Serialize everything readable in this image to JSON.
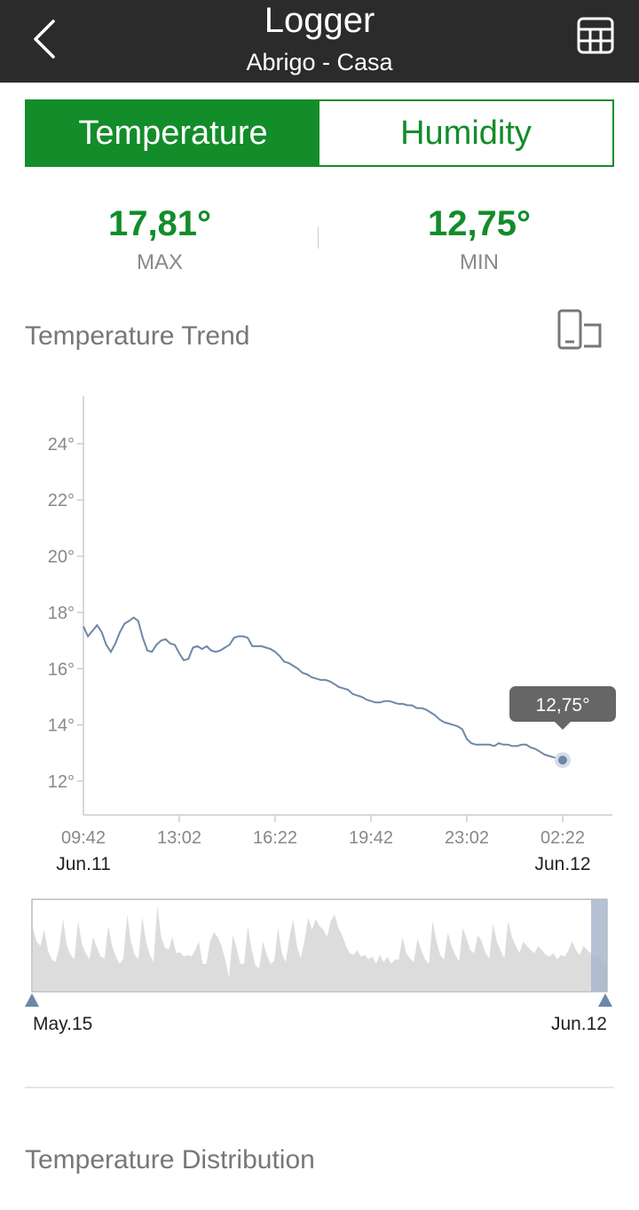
{
  "header": {
    "title": "Logger",
    "subtitle": "Abrigo - Casa"
  },
  "tabs": [
    {
      "label": "Temperature",
      "active": true
    },
    {
      "label": "Humidity",
      "active": false
    }
  ],
  "stats": {
    "max": {
      "value": "17,81°",
      "label": "MAX"
    },
    "min": {
      "value": "12,75°",
      "label": "MIN"
    }
  },
  "colors": {
    "accent": "#138c2a",
    "header_bg": "#2b2b2b",
    "line": "#6e87a8",
    "overview_fill": "#dcdcdc",
    "overview_handle": "#6e87a8"
  },
  "trend": {
    "title": "Temperature Trend",
    "rotate_icon": "rotate-screen-icon",
    "tooltip": "12,75°",
    "date_start": "Jun.11",
    "date_end": "Jun.12"
  },
  "chart_data": {
    "type": "line",
    "title": "Temperature Trend",
    "xlabel": "",
    "ylabel": "",
    "ylim": [
      10.8,
      25.7
    ],
    "yticks": [
      12,
      14,
      16,
      18,
      20,
      22,
      24
    ],
    "ytick_labels": [
      "12°",
      "14°",
      "16°",
      "18°",
      "20°",
      "22°",
      "24°"
    ],
    "xticks": [
      "09:42",
      "13:02",
      "16:22",
      "19:42",
      "23:02",
      "02:22"
    ],
    "grid": false,
    "legend": "none",
    "series": [
      {
        "values": [
          17.5,
          17.15,
          17.35,
          17.55,
          17.3,
          16.85,
          16.6,
          16.9,
          17.3,
          17.6,
          17.7,
          17.82,
          17.7,
          17.1,
          16.65,
          16.6,
          16.85,
          17.0,
          17.05,
          16.9,
          16.85,
          16.55,
          16.3,
          16.35,
          16.75,
          16.8,
          16.7,
          16.8,
          16.65,
          16.6,
          16.65,
          16.75,
          16.85,
          17.1,
          17.15,
          17.15,
          17.1,
          16.8,
          16.8,
          16.8,
          16.75,
          16.7,
          16.6,
          16.45,
          16.25,
          16.2,
          16.1,
          16.0,
          15.85,
          15.8,
          15.7,
          15.65,
          15.6,
          15.6,
          15.55,
          15.45,
          15.35,
          15.3,
          15.25,
          15.1,
          15.05,
          15.0,
          14.9,
          14.85,
          14.8,
          14.8,
          14.85,
          14.85,
          14.8,
          14.75,
          14.75,
          14.7,
          14.7,
          14.6,
          14.6,
          14.55,
          14.45,
          14.35,
          14.2,
          14.1,
          14.05,
          14.0,
          13.95,
          13.85,
          13.5,
          13.35,
          13.3,
          13.3,
          13.3,
          13.3,
          13.25,
          13.35,
          13.3,
          13.3,
          13.25,
          13.25,
          13.3,
          13.3,
          13.2,
          13.15,
          13.05,
          12.95,
          12.9,
          12.85,
          12.8,
          12.75
        ]
      }
    ],
    "highlight": {
      "index": 105,
      "value": 12.75,
      "label": "12,75°"
    }
  },
  "overview": {
    "start_label": "May.15",
    "end_label": "Jun.12",
    "values": [
      0.7,
      0.55,
      0.5,
      0.68,
      0.45,
      0.35,
      0.32,
      0.48,
      0.8,
      0.5,
      0.4,
      0.35,
      0.78,
      0.52,
      0.42,
      0.35,
      0.6,
      0.48,
      0.38,
      0.36,
      0.72,
      0.5,
      0.38,
      0.3,
      0.36,
      0.85,
      0.55,
      0.4,
      0.35,
      0.82,
      0.55,
      0.4,
      0.32,
      0.95,
      0.6,
      0.48,
      0.46,
      0.6,
      0.42,
      0.43,
      0.38,
      0.4,
      0.38,
      0.45,
      0.55,
      0.3,
      0.3,
      0.55,
      0.65,
      0.6,
      0.5,
      0.35,
      0.15,
      0.62,
      0.48,
      0.3,
      0.3,
      0.72,
      0.46,
      0.28,
      0.25,
      0.55,
      0.4,
      0.3,
      0.33,
      0.7,
      0.42,
      0.32,
      0.58,
      0.8,
      0.5,
      0.36,
      0.55,
      0.82,
      0.68,
      0.8,
      0.72,
      0.68,
      0.6,
      0.78,
      0.85,
      0.7,
      0.62,
      0.5,
      0.42,
      0.4,
      0.45,
      0.38,
      0.4,
      0.35,
      0.38,
      0.3,
      0.4,
      0.32,
      0.38,
      0.3,
      0.35,
      0.35,
      0.6,
      0.42,
      0.36,
      0.32,
      0.58,
      0.45,
      0.35,
      0.3,
      0.78,
      0.55,
      0.4,
      0.35,
      0.65,
      0.5,
      0.4,
      0.33,
      0.7,
      0.58,
      0.45,
      0.42,
      0.62,
      0.55,
      0.42,
      0.36,
      0.75,
      0.55,
      0.45,
      0.36,
      0.78,
      0.6,
      0.5,
      0.42,
      0.55,
      0.5,
      0.45,
      0.42,
      0.5,
      0.45,
      0.4,
      0.38,
      0.42,
      0.35,
      0.4,
      0.38,
      0.45,
      0.55,
      0.45,
      0.4,
      0.5,
      0.45,
      0.42,
      0.38,
      0.4,
      0.35,
      0.3
    ]
  },
  "distribution": {
    "title": "Temperature Distribution"
  }
}
